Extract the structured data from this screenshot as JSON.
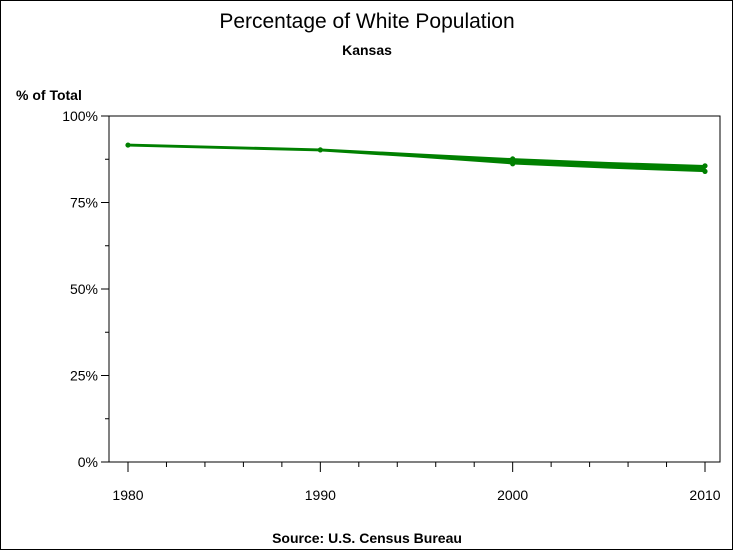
{
  "chart_data": {
    "type": "line",
    "title": "Percentage of White Population",
    "subtitle": "Kansas",
    "ylabel": "% of Total",
    "xlabel": "",
    "source": "Source: U.S. Census Bureau",
    "x_ticks": [
      "1980",
      "1990",
      "2000",
      "2010"
    ],
    "y_ticks": [
      "0%",
      "25%",
      "50%",
      "75%",
      "100%"
    ],
    "xlim": [
      1980,
      2010
    ],
    "ylim": [
      0,
      100
    ],
    "grid": false,
    "colors": {
      "series": "#008000",
      "axis": "#000000"
    },
    "band": {
      "x": [
        1980,
        1990,
        1995,
        2000,
        2005,
        2010
      ],
      "upper": [
        91.8,
        90.4,
        89.0,
        87.6,
        86.5,
        85.6
      ],
      "lower": [
        91.4,
        90.0,
        88.2,
        86.2,
        85.0,
        84.0
      ]
    },
    "markers": [
      {
        "x": 1980,
        "y": 91.6
      },
      {
        "x": 1990,
        "y": 90.2
      },
      {
        "x": 2000,
        "y": 87.6
      },
      {
        "x": 2000,
        "y": 86.2
      },
      {
        "x": 2010,
        "y": 85.6
      },
      {
        "x": 2010,
        "y": 84.0
      }
    ]
  }
}
